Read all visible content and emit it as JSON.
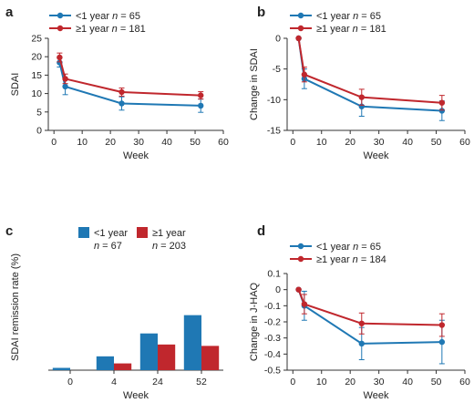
{
  "colors": {
    "short": "#1f78b4",
    "long": "#c0272d"
  },
  "chart_data": [
    {
      "panel": "a",
      "type": "line",
      "xlabel": "Week",
      "ylabel": "SDAI",
      "xlim": [
        -2,
        60
      ],
      "ylim": [
        0,
        25
      ],
      "xticks": [
        "0",
        "10",
        "20",
        "30",
        "40",
        "50",
        "60"
      ],
      "yticks": [
        "0",
        "5",
        "10",
        "15",
        "20",
        "25"
      ],
      "legend": [
        "<1 year n = 65",
        "≥1 year n = 181"
      ],
      "series": [
        {
          "name": "<1 year n = 65",
          "x": [
            2,
            4,
            24,
            52
          ],
          "y": [
            18.4,
            11.9,
            7.3,
            6.7
          ],
          "err": [
            1.2,
            2.2,
            1.8,
            1.8
          ]
        },
        {
          "name": "≥1 year n = 181",
          "x": [
            2,
            4,
            24,
            52
          ],
          "y": [
            19.8,
            14.0,
            10.4,
            9.5
          ],
          "err": [
            1.2,
            1.3,
            1.1,
            1.0
          ]
        }
      ]
    },
    {
      "panel": "b",
      "type": "line",
      "xlabel": "Week",
      "ylabel": "Change in SDAI",
      "xlim": [
        -2,
        60
      ],
      "ylim": [
        -15,
        0
      ],
      "xticks": [
        "0",
        "10",
        "20",
        "30",
        "40",
        "50",
        "60"
      ],
      "yticks": [
        "0",
        "-5",
        "-10",
        "-15"
      ],
      "legend": [
        "<1 year n = 65",
        "≥1 year n = 181"
      ],
      "series": [
        {
          "name": "<1 year n = 65",
          "x": [
            2,
            4,
            24,
            52
          ],
          "y": [
            0,
            -6.6,
            -11.1,
            -11.8
          ],
          "err": [
            0,
            1.6,
            1.6,
            1.6
          ]
        },
        {
          "name": "≥1 year n = 181",
          "x": [
            2,
            4,
            24,
            52
          ],
          "y": [
            0,
            -5.9,
            -9.6,
            -10.5
          ],
          "err": [
            0,
            1.2,
            1.3,
            1.2
          ]
        }
      ]
    },
    {
      "panel": "c",
      "type": "bar",
      "xlabel": "Week",
      "ylabel": "SDAI remission rate (%)",
      "ylim": [
        0,
        70
      ],
      "categories": [
        "0",
        "4",
        "24",
        "52"
      ],
      "legend": [
        "<1 year\nn = 67",
        "≥1 year\nn = 203"
      ],
      "series": [
        {
          "name": "<1 year n = 67",
          "values": [
            1.5,
            9.0,
            23.9,
            35.8
          ]
        },
        {
          "name": "≥1 year n = 203",
          "values": [
            0,
            4.4,
            16.7,
            15.8
          ]
        }
      ]
    },
    {
      "panel": "d",
      "type": "line",
      "xlabel": "Week",
      "ylabel": "Change in J-HAQ",
      "xlim": [
        -2,
        60
      ],
      "ylim": [
        -0.5,
        0.1
      ],
      "xticks": [
        "0",
        "10",
        "20",
        "30",
        "40",
        "50",
        "60"
      ],
      "yticks": [
        "0.1",
        "0",
        "-0.1",
        "-0.2",
        "-0.3",
        "-0.4",
        "-0.5"
      ],
      "legend": [
        "<1 year n = 65",
        "≥1 year n = 184"
      ],
      "series": [
        {
          "name": "<1 year n = 65",
          "x": [
            2,
            4,
            24,
            52
          ],
          "y": [
            0,
            -0.1,
            -0.335,
            -0.325
          ],
          "err": [
            0,
            0.09,
            0.1,
            0.135
          ]
        },
        {
          "name": "≥1 year n = 184",
          "x": [
            2,
            4,
            24,
            52
          ],
          "y": [
            0,
            -0.09,
            -0.21,
            -0.22
          ],
          "err": [
            0,
            0.06,
            0.065,
            0.07
          ]
        }
      ]
    }
  ]
}
